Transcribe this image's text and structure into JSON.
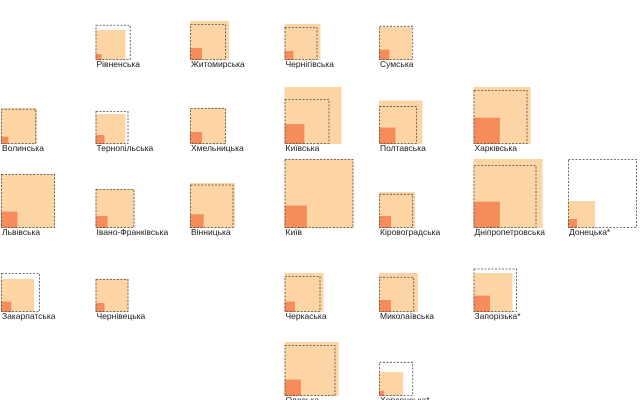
{
  "chart_data": {
    "type": "tile_grid_nested_squares",
    "value_encoding": "square area is proportional to value",
    "measures": [
      "outer",
      "inner",
      "reference"
    ],
    "colors": {
      "outer": "#fdd5a4",
      "inner": "#f58c5a",
      "reference_stroke": "#4a4a4a"
    },
    "regions": [
      {
        "name": "Рівненська",
        "col": 1,
        "row": 0,
        "outer": 1.0,
        "inner": 0.04,
        "reference": 1.38
      },
      {
        "name": "Житомирська",
        "col": 2,
        "row": 0,
        "outer": 1.7,
        "inner": 0.16,
        "reference": 1.44
      },
      {
        "name": "Чернігівська",
        "col": 3,
        "row": 0,
        "outer": 1.44,
        "inner": 0.09,
        "reference": 1.21
      },
      {
        "name": "Сумська",
        "col": 4,
        "row": 0,
        "outer": 1.21,
        "inner": 0.12,
        "reference": 1.3
      },
      {
        "name": "Волинська",
        "col": 0,
        "row": 1,
        "outer": 1.44,
        "inner": 0.06,
        "reference": 1.38
      },
      {
        "name": "Тернопільська",
        "col": 1,
        "row": 1,
        "outer": 1.0,
        "inner": 0.09,
        "reference": 1.21
      },
      {
        "name": "Хмельницька",
        "col": 2,
        "row": 1,
        "outer": 1.44,
        "inner": 0.16,
        "reference": 1.44
      },
      {
        "name": "Київська",
        "col": 3,
        "row": 1,
        "outer": 3.61,
        "inner": 0.44,
        "reference": 2.25
      },
      {
        "name": "Полтавська",
        "col": 4,
        "row": 1,
        "outer": 2.1,
        "inner": 0.3,
        "reference": 1.6
      },
      {
        "name": "Харківська",
        "col": 5,
        "row": 1,
        "outer": 3.61,
        "inner": 0.77,
        "reference": 3.24
      },
      {
        "name": "Львівська",
        "col": 0,
        "row": 2,
        "outer": 3.24,
        "inner": 0.3,
        "reference": 3.24
      },
      {
        "name": "Івано-Франківська",
        "col": 1,
        "row": 2,
        "outer": 1.69,
        "inner": 0.16,
        "reference": 1.69
      },
      {
        "name": "Вінницька",
        "col": 2,
        "row": 2,
        "outer": 2.25,
        "inner": 0.21,
        "reference": 2.1
      },
      {
        "name": "Київ",
        "col": 3,
        "row": 2,
        "outer": 5.29,
        "inner": 0.56,
        "reference": 5.29
      },
      {
        "name": "Кіровоградська",
        "col": 4,
        "row": 2,
        "outer": 1.44,
        "inner": 0.16,
        "reference": 1.3
      },
      {
        "name": "Дніпропетровська",
        "col": 5,
        "row": 2,
        "outer": 5.29,
        "inner": 0.77,
        "reference": 4.41
      },
      {
        "name": "Донецька*",
        "col": 6,
        "row": 2,
        "outer": 0.81,
        "inner": 0.09,
        "reference": 5.29
      },
      {
        "name": "Закарпатська",
        "col": 0,
        "row": 3,
        "outer": 1.21,
        "inner": 0.12,
        "reference": 1.69
      },
      {
        "name": "Чернівецька",
        "col": 1,
        "row": 3,
        "outer": 1.21,
        "inner": 0.09,
        "reference": 1.21
      },
      {
        "name": "Черкаська",
        "col": 3,
        "row": 3,
        "outer": 1.69,
        "inner": 0.12,
        "reference": 1.44
      },
      {
        "name": "Миколаївська",
        "col": 4,
        "row": 3,
        "outer": 1.69,
        "inner": 0.16,
        "reference": 1.38
      },
      {
        "name": "Запорізька*",
        "col": 5,
        "row": 3,
        "outer": 1.69,
        "inner": 0.3,
        "reference": 2.1
      },
      {
        "name": "Одеська",
        "col": 3,
        "row": 4,
        "outer": 3.24,
        "inner": 0.3,
        "reference": 2.89
      },
      {
        "name": "Херсонська*",
        "col": 4,
        "row": 4,
        "outer": 0.64,
        "inner": 0.03,
        "reference": 1.3
      }
    ]
  }
}
